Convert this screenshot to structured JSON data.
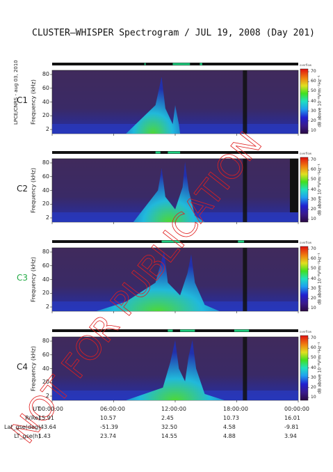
{
  "title": "CLUSTER–WHISPER Spectrogram / JUL 19, 2008 (Day 201)",
  "side_credit": "LPCE/CNRS - aug 03, 2010",
  "watermark": "NOT FOR PUBLICATION",
  "chart_data": [
    {
      "type": "heatmap",
      "panel": "C1",
      "label_color": "#222222",
      "ylabel": "Frequency (kHz)",
      "yticks": [
        "80",
        "60",
        "40",
        "20",
        "2"
      ],
      "ylim": [
        2,
        80
      ],
      "xlim": [
        "00:00:00",
        "24:00:00"
      ],
      "colorbar": {
        "title": "dB above 10⁻⁸V²m⁻²Hz⁻¹",
        "ticks": [
          "70",
          "60",
          "50",
          "40",
          "30",
          "20",
          "10"
        ],
        "range": [
          5,
          72
        ],
        "header": "overflow"
      }
    },
    {
      "type": "heatmap",
      "panel": "C2",
      "label_color": "#222222",
      "ylabel": "Frequency (kHz)",
      "yticks": [
        "80",
        "60",
        "40",
        "20",
        "2"
      ],
      "ylim": [
        2,
        80
      ],
      "xlim": [
        "00:00:00",
        "24:00:00"
      ],
      "colorbar": {
        "title": "dB above 10⁻⁸V²m⁻²Hz⁻¹",
        "ticks": [
          "70",
          "60",
          "50",
          "40",
          "30",
          "20",
          "10"
        ],
        "range": [
          5,
          72
        ],
        "header": "overflow"
      }
    },
    {
      "type": "heatmap",
      "panel": "C3",
      "label_color": "#22aa44",
      "ylabel": "Frequency (kHz)",
      "yticks": [
        "80",
        "60",
        "40",
        "20",
        "2"
      ],
      "ylim": [
        2,
        80
      ],
      "xlim": [
        "00:00:00",
        "24:00:00"
      ],
      "colorbar": {
        "title": "dB above 10⁻⁸V²m⁻²Hz⁻¹",
        "ticks": [
          "70",
          "60",
          "50",
          "40",
          "30",
          "20",
          "10"
        ],
        "range": [
          5,
          72
        ],
        "header": "overflow"
      }
    },
    {
      "type": "heatmap",
      "panel": "C4",
      "label_color": "#222222",
      "ylabel": "Frequency (kHz)",
      "yticks": [
        "80",
        "60",
        "40",
        "20",
        "2"
      ],
      "ylim": [
        2,
        80
      ],
      "xlim": [
        "00:00:00",
        "24:00:00"
      ],
      "colorbar": {
        "title": "dB above 10⁻⁸V²m⁻²Hz⁻¹",
        "ticks": [
          "70",
          "60",
          "50",
          "40",
          "30",
          "20",
          "10"
        ],
        "range": [
          5,
          72
        ],
        "header": "overflow"
      }
    }
  ],
  "ephemeris": {
    "rows": [
      {
        "name": "UT",
        "values": [
          "00:00:00",
          "06:00:00",
          "12:00:00",
          "18:00:00",
          "00:00:00"
        ]
      },
      {
        "name": "R(Re)",
        "values": [
          "15.91",
          "10.57",
          "2.45",
          "10.73",
          "16.01"
        ]
      },
      {
        "name": "Lat_gse(deg)",
        "values": [
          "-43.64",
          "-51.39",
          "32.50",
          "4.58",
          "-9.81"
        ]
      },
      {
        "name": "LT_gse(h)",
        "values": [
          "1.43",
          "23.74",
          "14.55",
          "4.88",
          "3.94"
        ]
      }
    ]
  }
}
